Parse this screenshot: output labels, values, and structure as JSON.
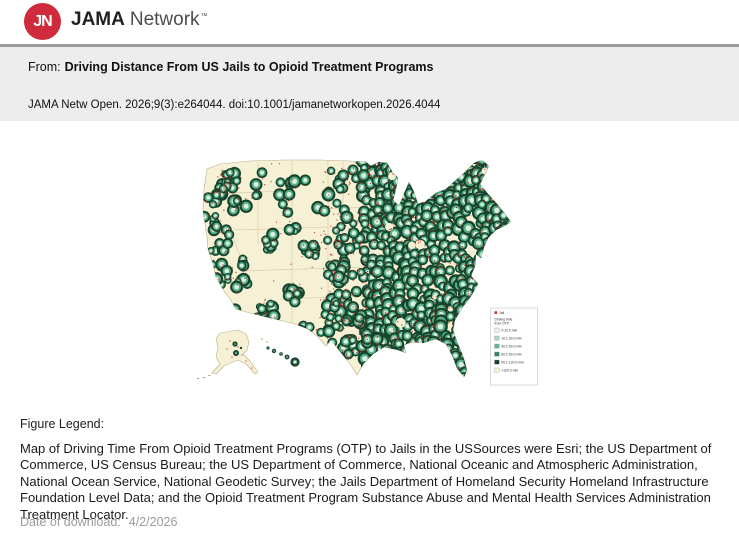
{
  "header": {
    "logo_monogram": "JN",
    "logo_color": "#cf2b3c",
    "brand_jama": "JAMA",
    "brand_network": "Network",
    "trademark": "™"
  },
  "article": {
    "from_prefix": "From:",
    "title": "Driving Distance From US Jails to Opioid Treatment Programs",
    "citation": "JAMA Netw Open. 2026;9(3):e264044. doi:10.1001/jamanetworkopen.2026.4044"
  },
  "figure_legend": {
    "heading": "Figure Legend:",
    "text": "Map of Driving Time From Opioid Treatment Programs (OTP) to Jails in the USSources were Esri; the US Department of Commerce, US Census Bureau; the US Department of Commerce, National Oceanic and Atmospheric Administration, National Ocean Service, National Geodetic Survey; the Jails Department of Homeland Security Homeland Infrastructure Foundation Level Data; and the Opioid Treatment Program Substance Abuse and Mental Health Services Administration Treatment Locator."
  },
  "footer": {
    "date_label": "Date of download:",
    "date_value": "4/2/2026"
  },
  "map": {
    "base_color": "#f6f1d4",
    "outline_color": "#b9ad8a",
    "state_line_color": "#c6ba93",
    "jail_color": "#c0332a",
    "ring_outer": "#17432c",
    "ring_mid": "#54b088",
    "ring_inner": "#dcefe3",
    "legend": {
      "jail_label": "Jail",
      "title_lines": [
        "Driving time",
        "from OTP"
      ],
      "classes": [
        {
          "label": "0-10.0 min",
          "color": "#e7f2ea"
        },
        {
          "label": "10.1-30.0 min",
          "color": "#a7d7bf"
        },
        {
          "label": "30.1-60.0 min",
          "color": "#5fb78f"
        },
        {
          "label": "60.1-90.0 min",
          "color": "#2e8a61"
        },
        {
          "label": "90.1-120.0 min",
          "color": "#1b4330"
        },
        {
          "label": ">120.0 min",
          "color": "#f7f3d7"
        }
      ]
    }
  }
}
